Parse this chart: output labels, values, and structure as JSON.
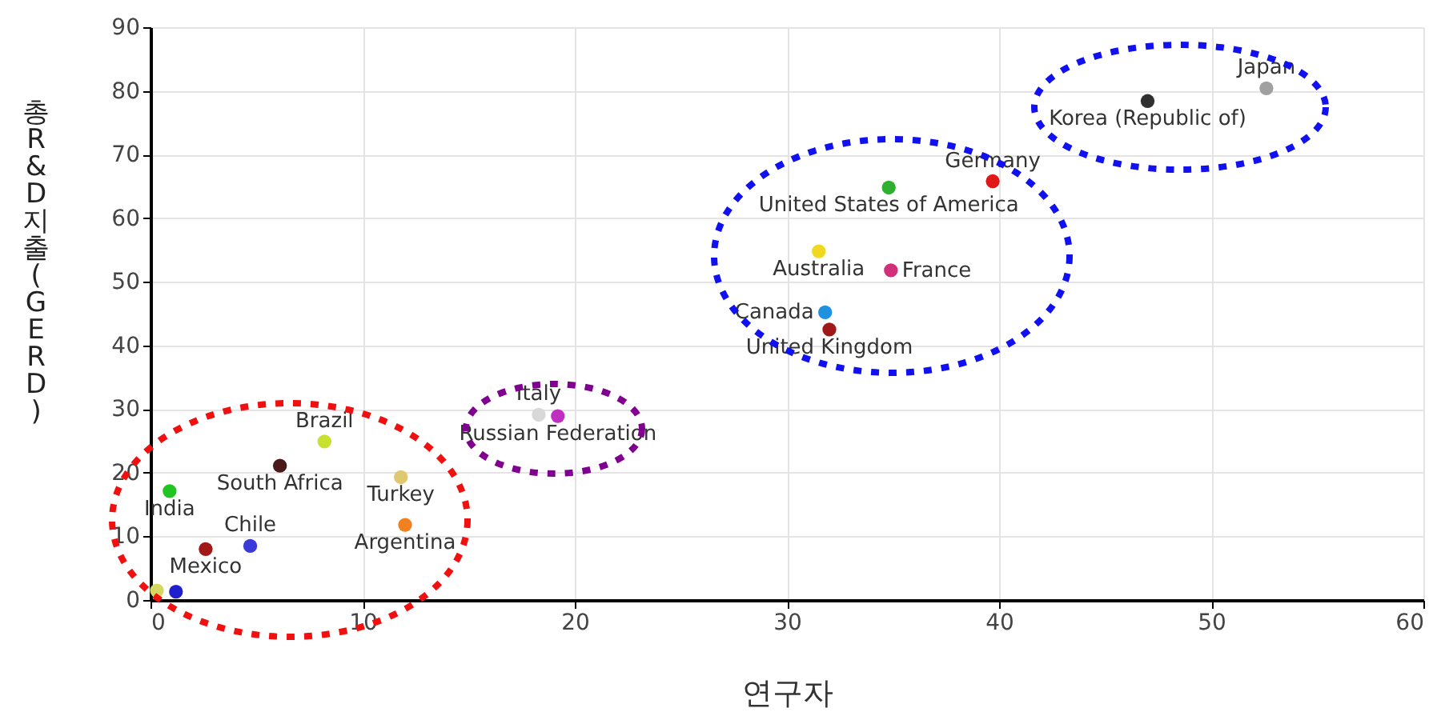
{
  "chart_data": {
    "type": "scatter",
    "xlabel": "연구자",
    "ylabel": "총 R&D 지출(GERD)",
    "xlim": [
      0,
      60
    ],
    "xticks": [
      0,
      10,
      20,
      30,
      40,
      50,
      60
    ],
    "ylim": [
      0,
      90
    ],
    "yticks": [
      0,
      10,
      20,
      30,
      40,
      50,
      60,
      70,
      80,
      90
    ],
    "grid": true,
    "marker": "circle",
    "series": [
      {
        "x": [
          0.3,
          1.2,
          0.9,
          2.6,
          4.7,
          6.1,
          8.2,
          11.8,
          12.0,
          18.3,
          19.2,
          31.5,
          34.9,
          31.8,
          32.0,
          34.8,
          39.7,
          47.0,
          52.6
        ],
        "values": [
          1.5,
          1.3,
          17.1,
          8.0,
          8.5,
          21.1,
          24.9,
          19.3,
          11.8,
          29.1,
          28.9,
          54.8,
          51.8,
          45.2,
          42.5,
          64.8,
          65.8,
          78.4,
          80.4
        ],
        "colors": [
          "#d4d860",
          "#1f1fd0",
          "#22c422",
          "#a01818",
          "#3a3ad8",
          "#4a1a1a",
          "#c8e030",
          "#e0c870",
          "#f08020",
          "#d8d8d8",
          "#c030c0",
          "#f0d820",
          "#d0307a",
          "#2090e0",
          "#a01818",
          "#30b030",
          "#e01818",
          "#303030",
          "#a0a0a0"
        ]
      }
    ],
    "annotations": [
      {
        "text": "India",
        "x": 0.9,
        "y": 17.1
      },
      {
        "text": "Mexico",
        "x": 2.6,
        "y": 8.0
      },
      {
        "text": "Chile",
        "x": 4.7,
        "y": 8.5
      },
      {
        "text": "South Africa",
        "x": 6.1,
        "y": 21.1
      },
      {
        "text": "Brazil",
        "x": 8.2,
        "y": 24.9
      },
      {
        "text": "Turkey",
        "x": 11.8,
        "y": 19.3
      },
      {
        "text": "Argentina",
        "x": 12.0,
        "y": 11.8
      },
      {
        "text": "Italy",
        "x": 18.3,
        "y": 29.1
      },
      {
        "text": "Russian Federation",
        "x": 19.2,
        "y": 28.9
      },
      {
        "text": "Australia",
        "x": 31.5,
        "y": 54.8
      },
      {
        "text": "France",
        "x": 34.9,
        "y": 51.8
      },
      {
        "text": "Canada",
        "x": 31.8,
        "y": 45.2
      },
      {
        "text": "United Kingdom",
        "x": 32.0,
        "y": 42.5
      },
      {
        "text": "United States of America",
        "x": 34.8,
        "y": 64.8
      },
      {
        "text": "Germany",
        "x": 39.7,
        "y": 65.8
      },
      {
        "text": "Korea (Republic of)",
        "x": 47.0,
        "y": 78.4
      },
      {
        "text": "Japan",
        "x": 52.6,
        "y": 80.4
      }
    ]
  }
}
